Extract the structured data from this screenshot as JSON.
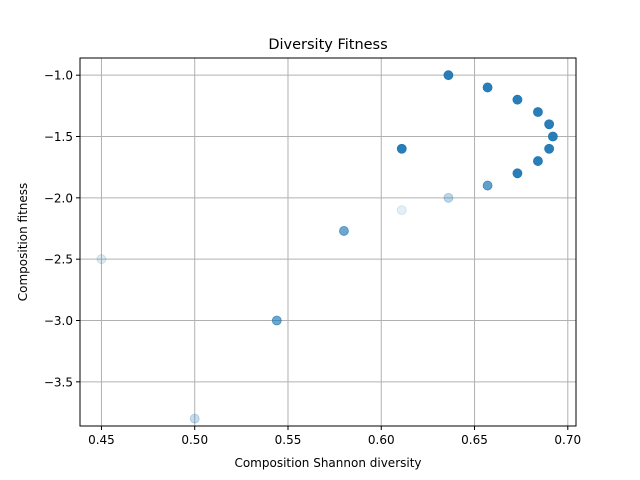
{
  "chart_data": {
    "type": "scatter",
    "title": "Diversity Fitness",
    "xlabel": "Composition Shannon diversity",
    "ylabel": "Composition fitness",
    "xlim": [
      0.4385,
      0.7044
    ],
    "ylim": [
      -3.86,
      -0.86
    ],
    "xticks": [
      0.45,
      0.5,
      0.55,
      0.6,
      0.65,
      0.7
    ],
    "xtick_labels": [
      "0.45",
      "0.50",
      "0.55",
      "0.60",
      "0.65",
      "0.70"
    ],
    "yticks": [
      -1.0,
      -1.5,
      -2.0,
      -2.5,
      -3.0,
      -3.5
    ],
    "ytick_labels": [
      "−1.0",
      "−1.5",
      "−2.0",
      "−2.5",
      "−3.0",
      "−3.5"
    ],
    "grid": true,
    "color": "#1f77b4",
    "points": [
      {
        "x": 0.45,
        "y": -2.5,
        "alpha": 0.15
      },
      {
        "x": 0.5,
        "y": -3.8,
        "alpha": 0.25
      },
      {
        "x": 0.544,
        "y": -3.0,
        "alpha": 0.65
      },
      {
        "x": 0.58,
        "y": -2.27,
        "alpha": 0.65
      },
      {
        "x": 0.611,
        "y": -2.1,
        "alpha": 0.12
      },
      {
        "x": 0.611,
        "y": -1.6,
        "alpha": 0.95
      },
      {
        "x": 0.636,
        "y": -2.0,
        "alpha": 0.3
      },
      {
        "x": 0.636,
        "y": -1.0,
        "alpha": 0.95
      },
      {
        "x": 0.657,
        "y": -1.9,
        "alpha": 0.7
      },
      {
        "x": 0.657,
        "y": -1.1,
        "alpha": 0.95
      },
      {
        "x": 0.673,
        "y": -1.8,
        "alpha": 0.95
      },
      {
        "x": 0.673,
        "y": -1.2,
        "alpha": 0.95
      },
      {
        "x": 0.684,
        "y": -1.7,
        "alpha": 0.95
      },
      {
        "x": 0.684,
        "y": -1.3,
        "alpha": 0.95
      },
      {
        "x": 0.69,
        "y": -1.6,
        "alpha": 0.95
      },
      {
        "x": 0.69,
        "y": -1.4,
        "alpha": 0.95
      },
      {
        "x": 0.692,
        "y": -1.5,
        "alpha": 0.95
      }
    ]
  }
}
